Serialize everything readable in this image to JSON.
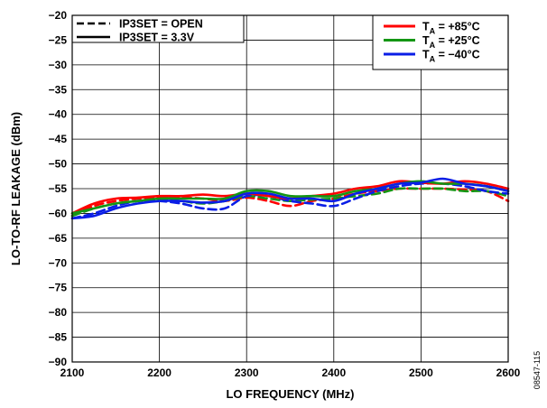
{
  "chart_data": {
    "type": "line",
    "xlabel": "LO FREQUENCY (MHz)",
    "ylabel": "LO-TO-RF LEAKAGE (dBm)",
    "xlim": [
      2100,
      2600
    ],
    "ylim": [
      -90,
      -20
    ],
    "xticks": [
      "2100",
      "2200",
      "2300",
      "2400",
      "2500",
      "2600"
    ],
    "yticks": [
      "−20",
      "−25",
      "−30",
      "−35",
      "−40",
      "−45",
      "−50",
      "−55",
      "−60",
      "−65",
      "−70",
      "−75",
      "−80",
      "−85",
      "−90"
    ],
    "grid": true,
    "figure_id": "08547-115",
    "legend_style": [
      {
        "label": "IP3SET = OPEN",
        "dash": "dashed"
      },
      {
        "label": "IP3SET = 3.3V",
        "dash": "solid"
      }
    ],
    "legend_temp": [
      {
        "prefix": "T",
        "sub": "A",
        "suffix": " = +85°C",
        "color": "#ff0000"
      },
      {
        "prefix": "T",
        "sub": "A",
        "suffix": " = +25°C",
        "color": "#149614"
      },
      {
        "prefix": "T",
        "sub": "A",
        "suffix": " = −40°C",
        "color": "#0a1ee6"
      }
    ],
    "x": [
      2100,
      2125,
      2150,
      2175,
      2200,
      2225,
      2250,
      2275,
      2300,
      2325,
      2350,
      2375,
      2400,
      2425,
      2450,
      2475,
      2500,
      2525,
      2550,
      2575,
      2600
    ],
    "series": [
      {
        "temp": "+85°C",
        "mode": "OPEN",
        "color": "#ff0000",
        "dash": "dashed",
        "values": [
          -60.5,
          -58.5,
          -57.5,
          -57.0,
          -56.8,
          -56.8,
          -57.0,
          -57.5,
          -56.8,
          -57.5,
          -58.5,
          -57.5,
          -57.0,
          -56.0,
          -55.5,
          -55.0,
          -55.0,
          -55.0,
          -55.2,
          -55.5,
          -57.5
        ]
      },
      {
        "temp": "+25°C",
        "mode": "OPEN",
        "color": "#149614",
        "dash": "dashed",
        "values": [
          -60.5,
          -59.0,
          -58.0,
          -57.5,
          -57.2,
          -57.5,
          -58.0,
          -57.5,
          -56.5,
          -57.0,
          -57.5,
          -57.2,
          -57.0,
          -56.5,
          -56.0,
          -55.0,
          -55.0,
          -55.0,
          -55.5,
          -55.5,
          -56.5
        ]
      },
      {
        "temp": "−40°C",
        "mode": "OPEN",
        "color": "#0a1ee6",
        "dash": "dashed",
        "values": [
          -61.0,
          -60.0,
          -58.5,
          -57.5,
          -57.5,
          -58.0,
          -59.0,
          -59.0,
          -56.5,
          -56.5,
          -57.5,
          -58.0,
          -58.5,
          -57.0,
          -55.5,
          -54.5,
          -54.0,
          -54.0,
          -54.5,
          -55.5,
          -56.0
        ]
      },
      {
        "temp": "+85°C",
        "mode": "3.3V",
        "color": "#ff0000",
        "dash": "solid",
        "values": [
          -60.0,
          -58.0,
          -57.0,
          -56.8,
          -56.5,
          -56.5,
          -56.2,
          -56.5,
          -56.0,
          -56.5,
          -57.0,
          -56.5,
          -56.0,
          -55.0,
          -54.5,
          -53.5,
          -53.8,
          -54.0,
          -53.5,
          -54.0,
          -55.0
        ]
      },
      {
        "temp": "+25°C",
        "mode": "3.3V",
        "color": "#149614",
        "dash": "solid",
        "values": [
          -60.0,
          -59.0,
          -58.0,
          -57.5,
          -57.0,
          -57.0,
          -57.0,
          -57.0,
          -55.5,
          -55.5,
          -56.5,
          -56.5,
          -56.5,
          -55.5,
          -55.0,
          -54.0,
          -53.5,
          -54.0,
          -54.0,
          -54.5,
          -55.5
        ]
      },
      {
        "temp": "−40°C",
        "mode": "3.3V",
        "color": "#0a1ee6",
        "dash": "solid",
        "values": [
          -61.0,
          -60.5,
          -59.0,
          -58.0,
          -57.5,
          -57.5,
          -57.8,
          -57.5,
          -56.0,
          -56.0,
          -57.0,
          -57.0,
          -57.5,
          -56.0,
          -55.0,
          -54.0,
          -53.8,
          -53.0,
          -54.0,
          -54.5,
          -55.5
        ]
      }
    ]
  }
}
